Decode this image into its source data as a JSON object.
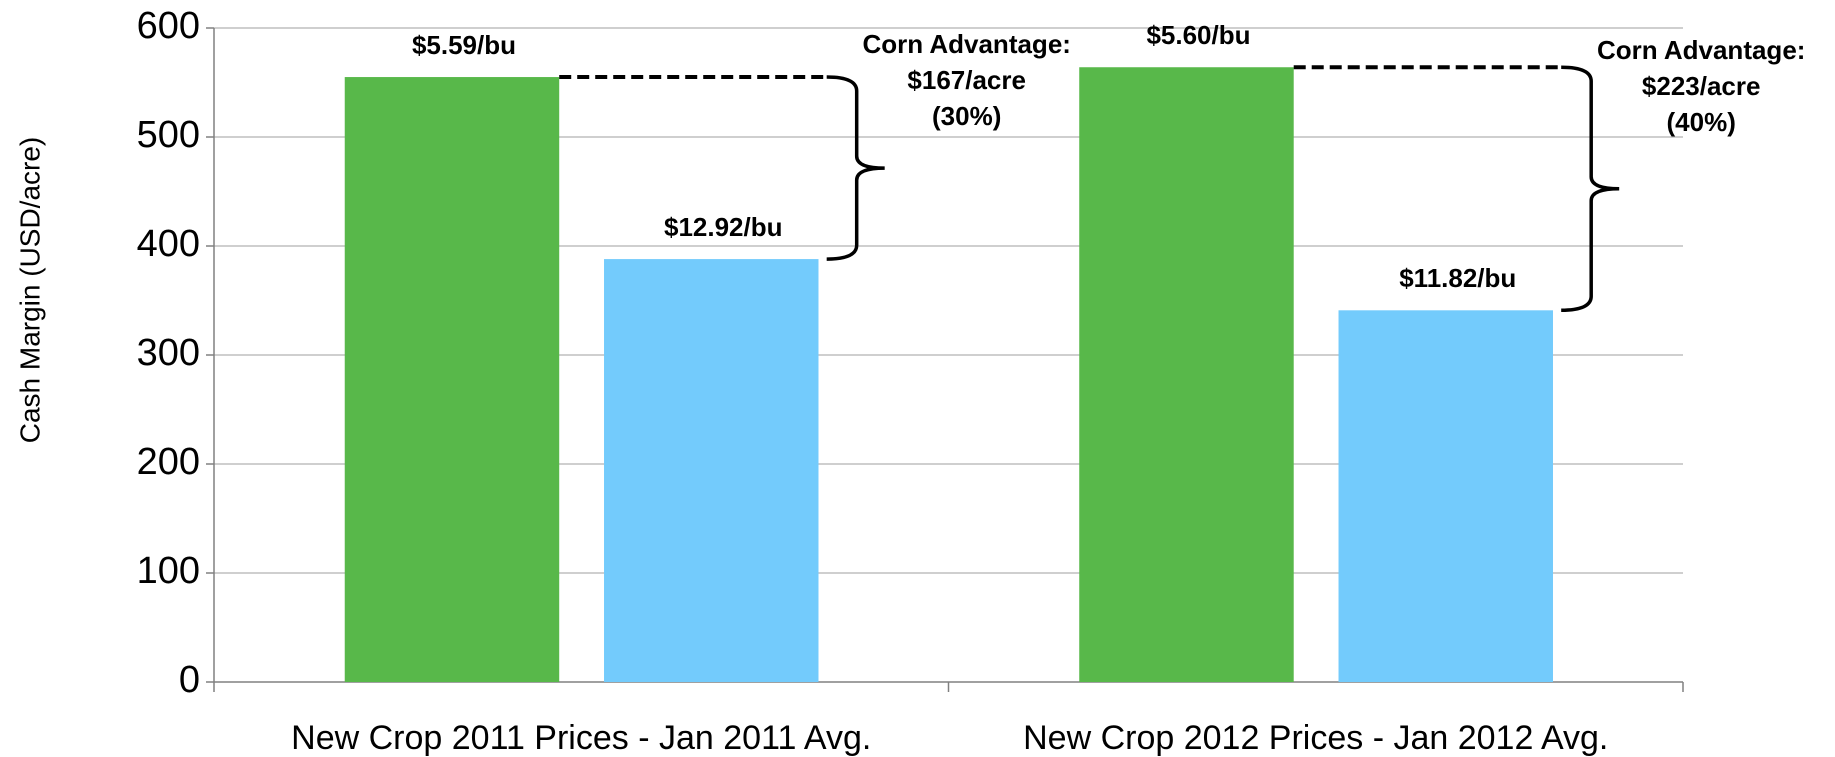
{
  "chart_data": {
    "type": "bar",
    "ylabel": "Cash Margin (USD/acre)",
    "categories": [
      "New Crop 2011 Prices - Jan 2011 Avg.",
      "New Crop 2012 Prices - Jan 2012 Avg."
    ],
    "series": [
      {
        "color": "#58b84a",
        "values": [
          555,
          564
        ],
        "bar_labels": [
          "$5.59/bu",
          "$5.60/bu"
        ]
      },
      {
        "color": "#73cbfc",
        "values": [
          388,
          341
        ],
        "bar_labels": [
          "$12.92/bu",
          "$11.82/bu"
        ]
      }
    ],
    "annotations": [
      {
        "lines": [
          "Corn Advantage:",
          "$167/acre",
          "(30%)"
        ]
      },
      {
        "lines": [
          "Corn Advantage:",
          "$223/acre",
          "(40%)"
        ]
      }
    ],
    "ylim": [
      0,
      600
    ],
    "yticks": [
      0,
      100,
      200,
      300,
      400,
      500,
      600
    ],
    "grid": true
  }
}
